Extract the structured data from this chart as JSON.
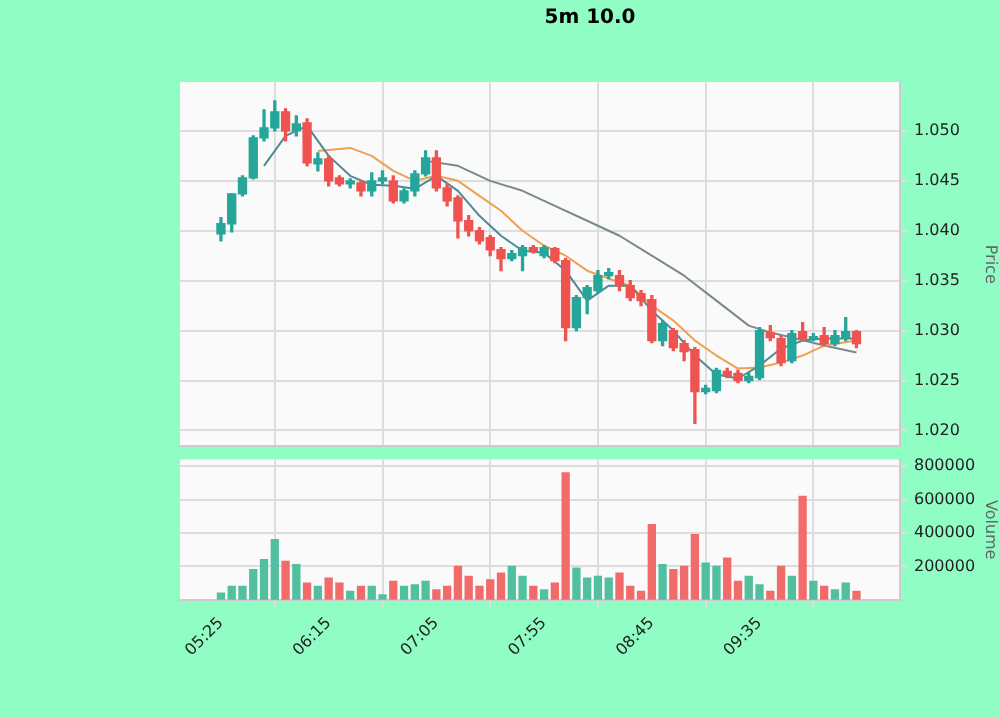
{
  "chart_data": [
    {
      "type": "candlestick",
      "title": "5m 10.0",
      "ylabel": "Price",
      "colors": [
        "#26a69a",
        "#26a69a",
        "#26a69a",
        "#26a69a",
        "#26a69a",
        "#26a69a",
        "#ef5350",
        "#26a69a",
        "#ef5350",
        "#26a69a",
        "#ef5350",
        "#ef5350",
        "#26a69a",
        "#ef5350",
        "#26a69a",
        "#26a69a",
        "#ef5350",
        "#26a69a",
        "#26a69a",
        "#26a69a",
        "#ef5350",
        "#ef5350",
        "#ef5350",
        "#ef5350",
        "#ef5350",
        "#ef5350",
        "#ef5350",
        "#26a69a",
        "#26a69a",
        "#ef5350",
        "#26a69a",
        "#ef5350",
        "#ef5350",
        "#26a69a",
        "#26a69a",
        "#26a69a",
        "#26a69a",
        "#ef5350",
        "#ef5350",
        "#ef5350",
        "#ef5350",
        "#26a69a",
        "#ef5350",
        "#ef5350",
        "#ef5350",
        "#26a69a",
        "#26a69a",
        "#ef5350",
        "#ef5350",
        "#26a69a",
        "#26a69a",
        "#ef5350",
        "#ef5350",
        "#26a69a",
        "#ef5350",
        "#26a69a",
        "#ef5350",
        "#26a69a",
        "#26a69a",
        "#ef5350"
      ],
      "x": [
        5.4167,
        5.5,
        5.5833,
        5.6667,
        5.75,
        5.8333,
        5.9167,
        6,
        6.0833,
        6.1667,
        6.25,
        6.3333,
        6.4167,
        6.5,
        6.5833,
        6.6667,
        6.75,
        6.8333,
        6.9167,
        7,
        7.0833,
        7.1667,
        7.25,
        7.3333,
        7.4167,
        7.5,
        7.5833,
        7.6667,
        7.75,
        7.8333,
        7.9167,
        8,
        8.0833,
        8.1667,
        8.25,
        8.3333,
        8.4167,
        8.5,
        8.5833,
        8.6667,
        8.75,
        8.8333,
        8.9167,
        9,
        9.0833,
        9.1667,
        9.25,
        9.3333,
        9.4167,
        9.5,
        9.5833,
        9.6667,
        9.75,
        9.8333,
        9.9167,
        10,
        10.0833,
        10.1667,
        10.25,
        10.3333
      ],
      "ohlc": [
        [
          1.0397,
          1.0413,
          1.039,
          1.0407
        ],
        [
          1.0407,
          1.0437,
          1.0399,
          1.0437
        ],
        [
          1.0437,
          1.0455,
          1.0435,
          1.0453
        ],
        [
          1.0453,
          1.0495,
          1.0452,
          1.0493
        ],
        [
          1.0493,
          1.0521,
          1.049,
          1.0503
        ],
        [
          1.0503,
          1.053,
          1.05,
          1.0519
        ],
        [
          1.0519,
          1.0522,
          1.049,
          1.05
        ],
        [
          1.05,
          1.0515,
          1.0495,
          1.0507
        ],
        [
          1.0508,
          1.0512,
          1.0465,
          1.0468
        ],
        [
          1.0467,
          1.0478,
          1.046,
          1.0472
        ],
        [
          1.0472,
          1.0475,
          1.0445,
          1.045
        ],
        [
          1.0453,
          1.0455,
          1.0445,
          1.0447
        ],
        [
          1.0447,
          1.0452,
          1.0443,
          1.045
        ],
        [
          1.0448,
          1.045,
          1.0435,
          1.044
        ],
        [
          1.044,
          1.0458,
          1.0435,
          1.045
        ],
        [
          1.045,
          1.046,
          1.0447,
          1.0453
        ],
        [
          1.045,
          1.0455,
          1.0428,
          1.043
        ],
        [
          1.043,
          1.0442,
          1.0428,
          1.044
        ],
        [
          1.044,
          1.046,
          1.0435,
          1.0457
        ],
        [
          1.0457,
          1.048,
          1.0455,
          1.0473
        ],
        [
          1.0473,
          1.048,
          1.044,
          1.0443
        ],
        [
          1.0443,
          1.0447,
          1.0425,
          1.043
        ],
        [
          1.0433,
          1.0435,
          1.0393,
          1.041
        ],
        [
          1.041,
          1.0415,
          1.0395,
          1.04
        ],
        [
          1.04,
          1.0403,
          1.0387,
          1.039
        ],
        [
          1.0393,
          1.0395,
          1.0375,
          1.0381
        ],
        [
          1.0381,
          1.0383,
          1.036,
          1.0372
        ],
        [
          1.0372,
          1.038,
          1.037,
          1.0377
        ],
        [
          1.0375,
          1.0385,
          1.036,
          1.0383
        ],
        [
          1.0383,
          1.0385,
          1.0378,
          1.038
        ],
        [
          1.0375,
          1.0385,
          1.0373,
          1.0383
        ],
        [
          1.0382,
          1.0383,
          1.0368,
          1.037
        ],
        [
          1.037,
          1.0372,
          1.029,
          1.0303
        ],
        [
          1.0303,
          1.0335,
          1.03,
          1.0333
        ],
        [
          1.0333,
          1.0345,
          1.0317,
          1.0343
        ],
        [
          1.034,
          1.036,
          1.0338,
          1.0355
        ],
        [
          1.0355,
          1.0362,
          1.0352,
          1.0358
        ],
        [
          1.0355,
          1.036,
          1.034,
          1.0345
        ],
        [
          1.0345,
          1.035,
          1.033,
          1.0333
        ],
        [
          1.0337,
          1.034,
          1.0325,
          1.033
        ],
        [
          1.0331,
          1.0335,
          1.0288,
          1.029
        ],
        [
          1.029,
          1.031,
          1.0285,
          1.0307
        ],
        [
          1.03,
          1.0302,
          1.028,
          1.0283
        ],
        [
          1.0287,
          1.029,
          1.027,
          1.0279
        ],
        [
          1.0281,
          1.0283,
          1.0207,
          1.0239
        ],
        [
          1.0239,
          1.0245,
          1.0237,
          1.0242
        ],
        [
          1.024,
          1.0262,
          1.0238,
          1.026
        ],
        [
          1.0259,
          1.0262,
          1.0253,
          1.0255
        ],
        [
          1.0257,
          1.026,
          1.0248,
          1.025
        ],
        [
          1.025,
          1.0257,
          1.0248,
          1.0254
        ],
        [
          1.0253,
          1.0303,
          1.0251,
          1.03
        ],
        [
          1.0298,
          1.0305,
          1.029,
          1.0293
        ],
        [
          1.0292,
          1.0295,
          1.0265,
          1.0268
        ],
        [
          1.027,
          1.03,
          1.0268,
          1.0297
        ],
        [
          1.0299,
          1.0308,
          1.029,
          1.0292
        ],
        [
          1.0292,
          1.0297,
          1.029,
          1.0294
        ],
        [
          1.0295,
          1.0303,
          1.0285,
          1.0287
        ],
        [
          1.0287,
          1.03,
          1.0285,
          1.0295
        ],
        [
          1.0293,
          1.0313,
          1.029,
          1.0299
        ],
        [
          1.0299,
          1.03,
          1.0283,
          1.0287
        ]
      ],
      "series": [
        {
          "type": "line",
          "color": "#4d8a94",
          "x": [
            5.75,
            5.9167,
            6.0833,
            6.25,
            6.4167,
            6.5833,
            6.75,
            6.9167,
            7.0833,
            7.25,
            7.4167,
            7.5833,
            7.75,
            7.9167,
            8.0833,
            8.25,
            8.4167,
            8.5833,
            8.75,
            8.9167,
            9.0833,
            9.25,
            9.4167,
            9.5833,
            9.75,
            9.9167,
            10.0833,
            10.3333
          ],
          "values": [
            1.0465,
            1.0495,
            1.0505,
            1.0475,
            1.0455,
            1.0446,
            1.0445,
            1.0442,
            1.0455,
            1.044,
            1.0415,
            1.0395,
            1.038,
            1.0378,
            1.036,
            1.033,
            1.0345,
            1.0345,
            1.032,
            1.03,
            1.0275,
            1.0256,
            1.0252,
            1.0265,
            1.0282,
            1.029,
            1.0292,
            1.0292
          ]
        },
        {
          "type": "line",
          "color": "#f0a050",
          "x": [
            6.1667,
            6.4167,
            6.5833,
            6.75,
            6.9167,
            7.0833,
            7.25,
            7.4167,
            7.5833,
            7.75,
            7.9167,
            8.0833,
            8.25,
            8.4167,
            8.5833,
            8.75,
            8.9167,
            9.0833,
            9.25,
            9.4167,
            9.5833,
            9.75,
            9.9167,
            10.0833,
            10.3333
          ],
          "values": [
            1.048,
            1.0483,
            1.0475,
            1.046,
            1.045,
            1.0455,
            1.045,
            1.0435,
            1.042,
            1.04,
            1.0385,
            1.0375,
            1.036,
            1.0352,
            1.0345,
            1.0325,
            1.031,
            1.029,
            1.0275,
            1.0262,
            1.0263,
            1.0268,
            1.0275,
            1.0285,
            1.029
          ]
        },
        {
          "type": "line",
          "color": "#7a8a8a",
          "x": [
            7,
            7.25,
            7.5,
            7.75,
            8,
            8.25,
            8.5,
            8.75,
            9,
            9.25,
            9.5,
            9.6667,
            9.8333,
            10.0833,
            10.3333
          ],
          "values": [
            1.047,
            1.0465,
            1.045,
            1.044,
            1.0425,
            1.041,
            1.0395,
            1.0375,
            1.0355,
            1.033,
            1.0305,
            1.0298,
            1.0293,
            1.0285,
            1.0278
          ]
        }
      ],
      "xlim": [
        5.1,
        10.67
      ],
      "xticks": [
        {
          "value": 5.4167,
          "label": null
        },
        {
          "value": 6.25,
          "label": null
        },
        {
          "value": 7.0833,
          "label": null
        },
        {
          "value": 7.9167,
          "label": null
        },
        {
          "value": 8.75,
          "label": null
        },
        {
          "value": 9.5833,
          "label": null
        }
      ],
      "ylim": [
        1.0184,
        1.0549
      ],
      "yticks": [
        {
          "value": 1.02,
          "label": "1.020"
        },
        {
          "value": 1.025,
          "label": "1.025"
        },
        {
          "value": 1.03,
          "label": "1.030"
        },
        {
          "value": 1.035,
          "label": "1.035"
        },
        {
          "value": 1.04,
          "label": "1.040"
        },
        {
          "value": 1.045,
          "label": "1.045"
        },
        {
          "value": 1.05,
          "label": "1.050"
        }
      ],
      "grid": true,
      "tick_labels": "y"
    },
    {
      "type": "bar",
      "ylabel": "Volume",
      "x": [
        5.4167,
        5.5,
        5.5833,
        5.6667,
        5.75,
        5.8333,
        5.9167,
        6,
        6.0833,
        6.1667,
        6.25,
        6.3333,
        6.4167,
        6.5,
        6.5833,
        6.6667,
        6.75,
        6.8333,
        6.9167,
        7,
        7.0833,
        7.1667,
        7.25,
        7.3333,
        7.4167,
        7.5,
        7.5833,
        7.6667,
        7.75,
        7.8333,
        7.9167,
        8,
        8.0833,
        8.1667,
        8.25,
        8.3333,
        8.4167,
        8.5,
        8.5833,
        8.6667,
        8.75,
        8.8333,
        8.9167,
        9,
        9.0833,
        9.1667,
        9.25,
        9.3333,
        9.4167,
        9.5,
        9.5833,
        9.6667,
        9.75,
        9.8333,
        9.9167,
        10,
        10.0833,
        10.1667,
        10.25,
        10.3333
      ],
      "values": [
        40000,
        80000,
        80000,
        180000,
        240000,
        360000,
        230000,
        210000,
        100000,
        80000,
        130000,
        100000,
        50000,
        80000,
        80000,
        30000,
        110000,
        80000,
        90000,
        110000,
        60000,
        80000,
        200000,
        140000,
        80000,
        120000,
        160000,
        200000,
        140000,
        80000,
        60000,
        100000,
        760000,
        190000,
        130000,
        140000,
        130000,
        160000,
        80000,
        50000,
        450000,
        210000,
        180000,
        200000,
        390000,
        220000,
        200000,
        250000,
        110000,
        140000,
        90000,
        50000,
        200000,
        140000,
        620000,
        110000,
        80000,
        60000,
        100000,
        50000
      ],
      "colors": [
        "#52bf9e",
        "#52bf9e",
        "#52bf9e",
        "#52bf9e",
        "#52bf9e",
        "#52bf9e",
        "#f26b6b",
        "#52bf9e",
        "#f26b6b",
        "#52bf9e",
        "#f26b6b",
        "#f26b6b",
        "#52bf9e",
        "#f26b6b",
        "#52bf9e",
        "#52bf9e",
        "#f26b6b",
        "#52bf9e",
        "#52bf9e",
        "#52bf9e",
        "#f26b6b",
        "#f26b6b",
        "#f26b6b",
        "#f26b6b",
        "#f26b6b",
        "#f26b6b",
        "#f26b6b",
        "#52bf9e",
        "#52bf9e",
        "#f26b6b",
        "#52bf9e",
        "#f26b6b",
        "#f26b6b",
        "#52bf9e",
        "#52bf9e",
        "#52bf9e",
        "#52bf9e",
        "#f26b6b",
        "#f26b6b",
        "#f26b6b",
        "#f26b6b",
        "#52bf9e",
        "#f26b6b",
        "#f26b6b",
        "#f26b6b",
        "#52bf9e",
        "#52bf9e",
        "#f26b6b",
        "#f26b6b",
        "#52bf9e",
        "#52bf9e",
        "#f26b6b",
        "#f26b6b",
        "#52bf9e",
        "#f26b6b",
        "#52bf9e",
        "#f26b6b",
        "#52bf9e",
        "#52bf9e",
        "#f26b6b"
      ],
      "xlim": [
        5.1,
        10.67
      ],
      "xticks": [
        {
          "value": 5.4167,
          "label": "05:25"
        },
        {
          "value": 6.25,
          "label": "06:15"
        },
        {
          "value": 7.0833,
          "label": "07:05"
        },
        {
          "value": 7.9167,
          "label": "07:55"
        },
        {
          "value": 8.75,
          "label": "08:45"
        },
        {
          "value": 9.5833,
          "label": "09:35"
        }
      ],
      "ylim": [
        0,
        840000
      ],
      "yticks": [
        200000,
        400000,
        600000,
        800000
      ],
      "grid": true
    }
  ]
}
